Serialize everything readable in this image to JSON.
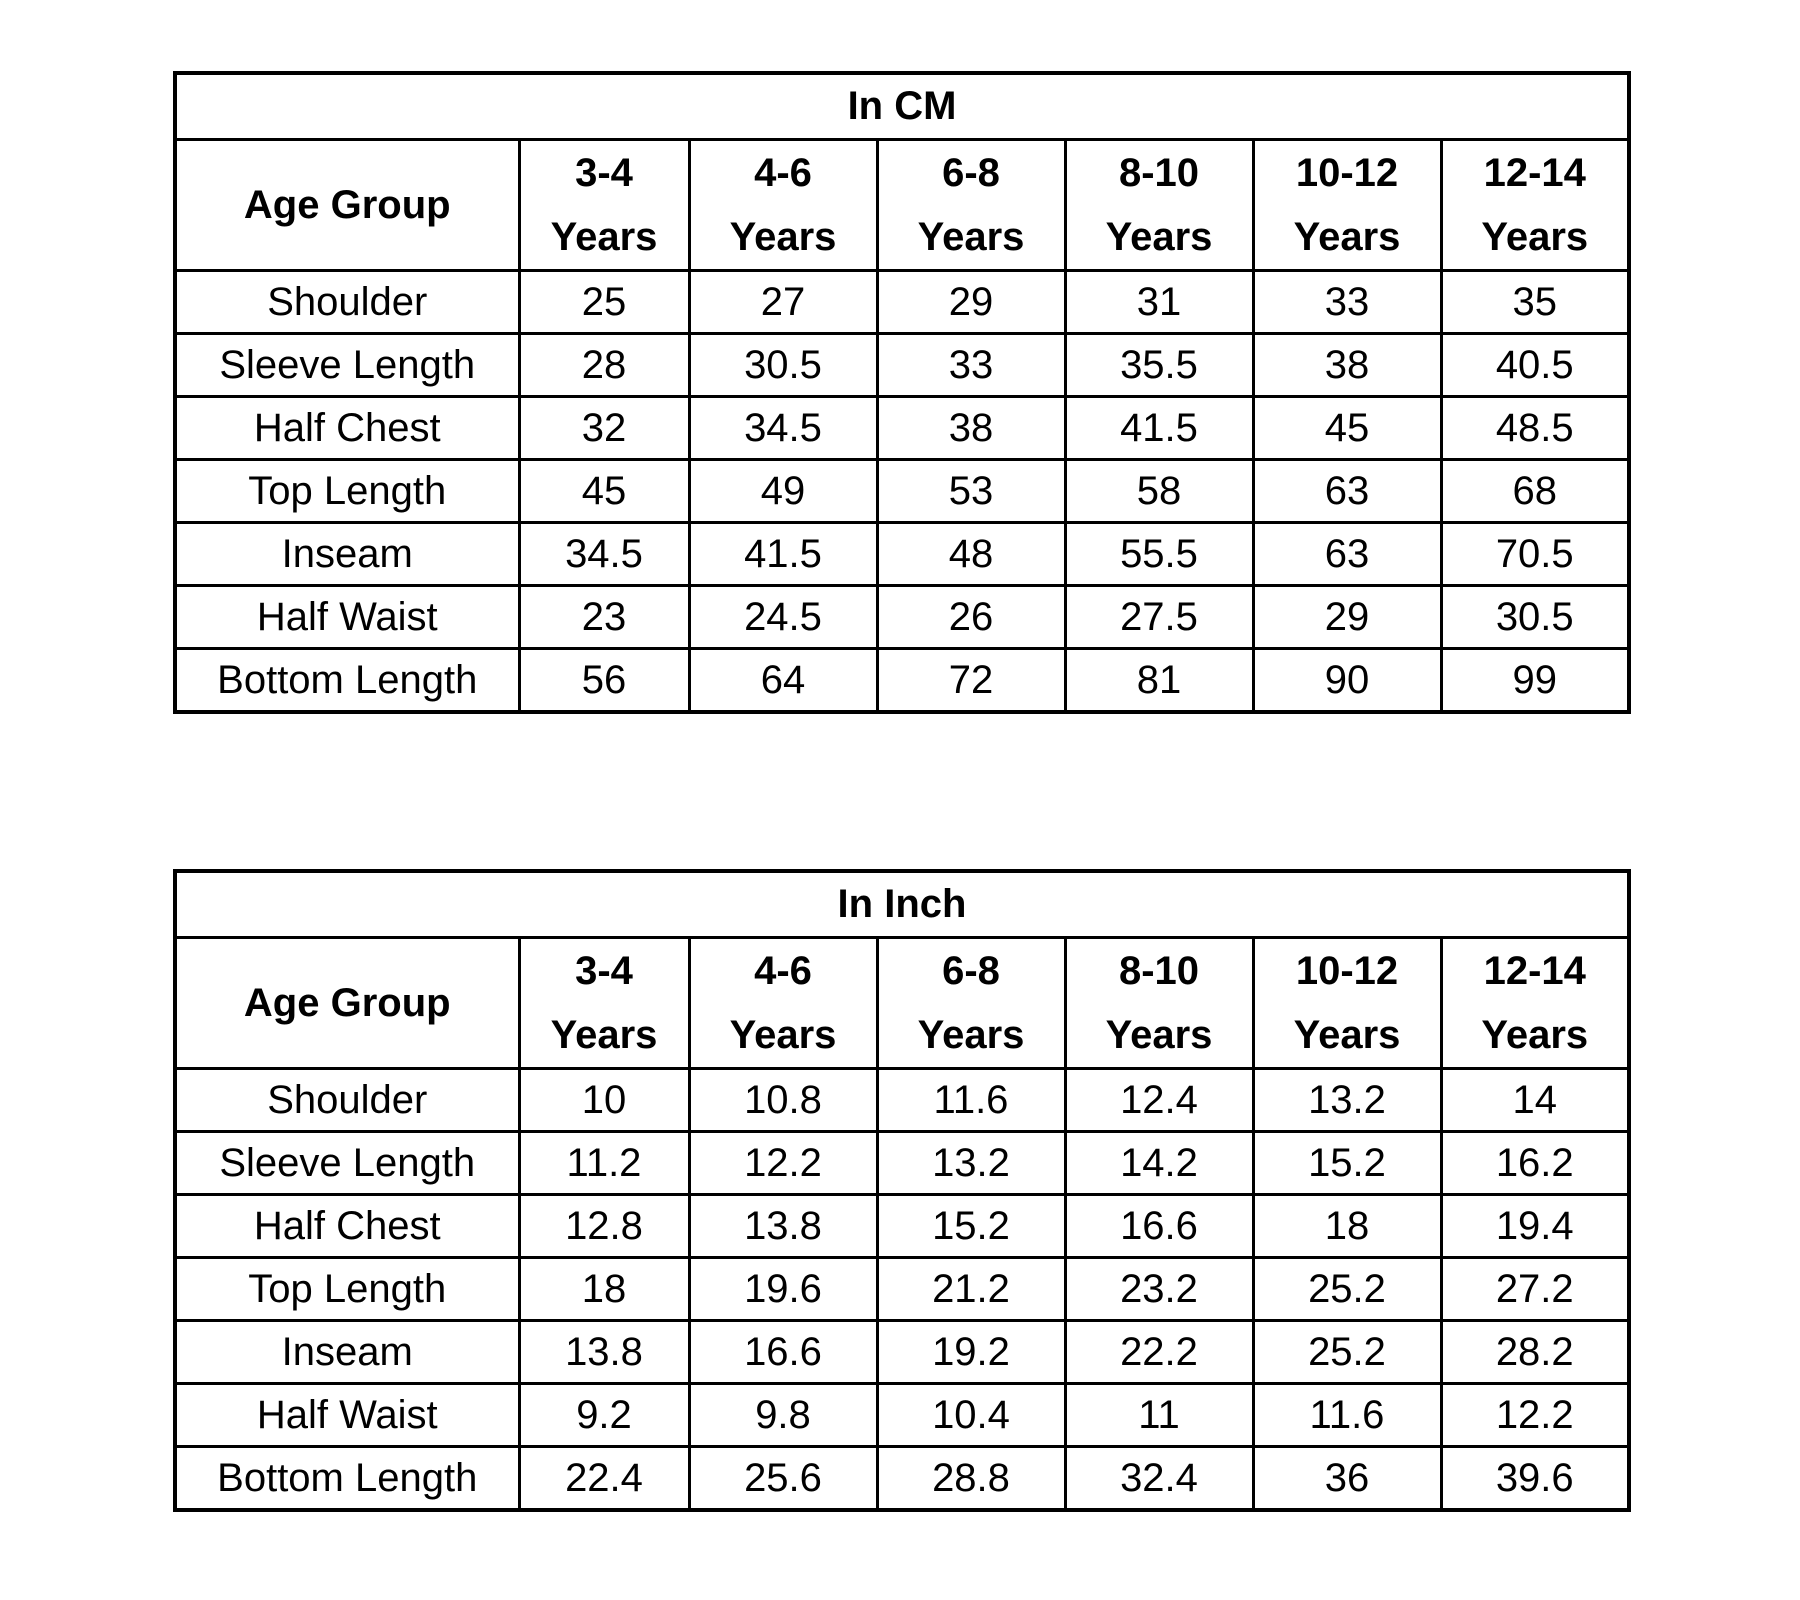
{
  "tables": [
    {
      "title": "In CM",
      "header_label": "Age Group",
      "columns": [
        {
          "range": "3-4",
          "unit": "Years"
        },
        {
          "range": "4-6",
          "unit": "Years"
        },
        {
          "range": "6-8",
          "unit": "Years"
        },
        {
          "range": "8-10",
          "unit": "Years"
        },
        {
          "range": "10-12",
          "unit": "Years"
        },
        {
          "range": "12-14",
          "unit": "Years"
        }
      ],
      "rows": [
        {
          "label": "Shoulder",
          "values": [
            "25",
            "27",
            "29",
            "31",
            "33",
            "35"
          ]
        },
        {
          "label": "Sleeve Length",
          "values": [
            "28",
            "30.5",
            "33",
            "35.5",
            "38",
            "40.5"
          ]
        },
        {
          "label": "Half Chest",
          "values": [
            "32",
            "34.5",
            "38",
            "41.5",
            "45",
            "48.5"
          ]
        },
        {
          "label": "Top Length",
          "values": [
            "45",
            "49",
            "53",
            "58",
            "63",
            "68"
          ]
        },
        {
          "label": "Inseam",
          "values": [
            "34.5",
            "41.5",
            "48",
            "55.5",
            "63",
            "70.5"
          ]
        },
        {
          "label": "Half Waist",
          "values": [
            "23",
            "24.5",
            "26",
            "27.5",
            "29",
            "30.5"
          ]
        },
        {
          "label": "Bottom Length",
          "values": [
            "56",
            "64",
            "72",
            "81",
            "90",
            "99"
          ]
        }
      ]
    },
    {
      "title": "In Inch",
      "header_label": "Age Group",
      "columns": [
        {
          "range": "3-4",
          "unit": "Years"
        },
        {
          "range": "4-6",
          "unit": "Years"
        },
        {
          "range": "6-8",
          "unit": "Years"
        },
        {
          "range": "8-10",
          "unit": "Years"
        },
        {
          "range": "10-12",
          "unit": "Years"
        },
        {
          "range": "12-14",
          "unit": "Years"
        }
      ],
      "rows": [
        {
          "label": "Shoulder",
          "values": [
            "10",
            "10.8",
            "11.6",
            "12.4",
            "13.2",
            "14"
          ]
        },
        {
          "label": "Sleeve Length",
          "values": [
            "11.2",
            "12.2",
            "13.2",
            "14.2",
            "15.2",
            "16.2"
          ]
        },
        {
          "label": "Half Chest",
          "values": [
            "12.8",
            "13.8",
            "15.2",
            "16.6",
            "18",
            "19.4"
          ]
        },
        {
          "label": "Top Length",
          "values": [
            "18",
            "19.6",
            "21.2",
            "23.2",
            "25.2",
            "27.2"
          ]
        },
        {
          "label": "Inseam",
          "values": [
            "13.8",
            "16.6",
            "19.2",
            "22.2",
            "25.2",
            "28.2"
          ]
        },
        {
          "label": "Half Waist",
          "values": [
            "9.2",
            "9.8",
            "10.4",
            "11",
            "11.6",
            "12.2"
          ]
        },
        {
          "label": "Bottom Length",
          "values": [
            "22.4",
            "25.6",
            "28.8",
            "32.4",
            "36",
            "39.6"
          ]
        }
      ]
    }
  ]
}
